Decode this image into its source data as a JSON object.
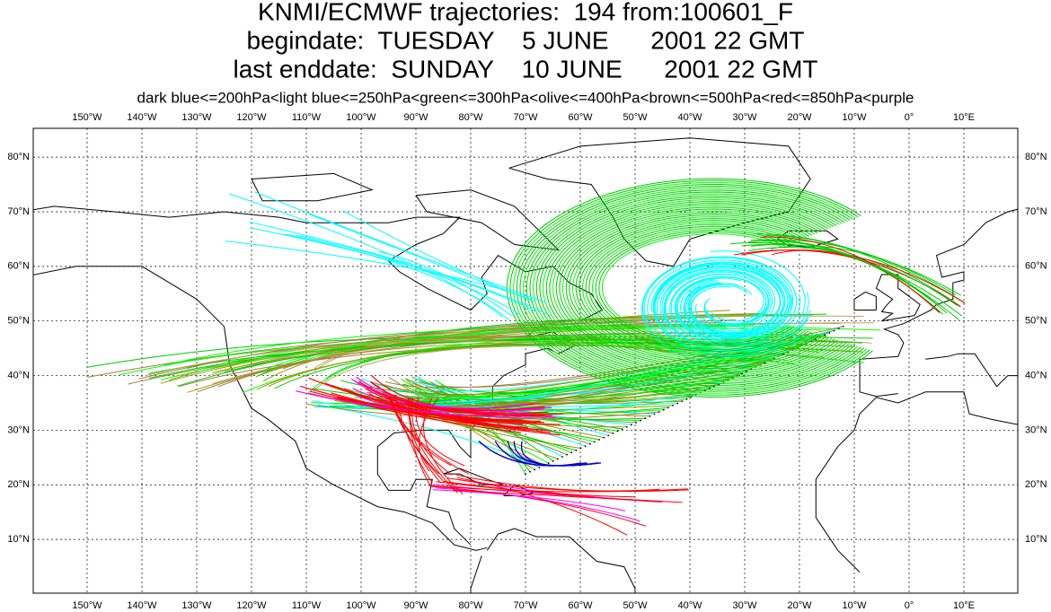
{
  "title": {
    "line1": "KNMI/ECMWF trajectories:  194 from:100601_F",
    "line2": "begindate:  TUESDAY    5 JUNE      2001 22 GMT",
    "line3": "last enddate:  SUNDAY    10 JUNE      2001 22 GMT"
  },
  "legend": "dark blue<=200hPa<light blue<=250hPa<green<=300hPa<olive<=400hPa<brown<=500hPa<red<=850hPa<purple",
  "map": {
    "lon_grid": [
      {
        "value": -150,
        "label": "150°W"
      },
      {
        "value": -140,
        "label": "140°W"
      },
      {
        "value": -130,
        "label": "130°W"
      },
      {
        "value": -120,
        "label": "120°W"
      },
      {
        "value": -110,
        "label": "110°W"
      },
      {
        "value": -100,
        "label": "100°W"
      },
      {
        "value": -90,
        "label": "90°W"
      },
      {
        "value": -80,
        "label": "80°W"
      },
      {
        "value": -70,
        "label": "70°W"
      },
      {
        "value": -60,
        "label": "60°W"
      },
      {
        "value": -50,
        "label": "50°W"
      },
      {
        "value": -40,
        "label": "40°W"
      },
      {
        "value": -30,
        "label": "30°W"
      },
      {
        "value": -20,
        "label": "20°W"
      },
      {
        "value": -10,
        "label": "10°W"
      },
      {
        "value": 0,
        "label": "0°"
      },
      {
        "value": 10,
        "label": "10°E"
      }
    ],
    "lat_grid": [
      {
        "value": 10,
        "label": "10°N"
      },
      {
        "value": 20,
        "label": "20°N"
      },
      {
        "value": 30,
        "label": "30°N"
      },
      {
        "value": 40,
        "label": "40°N"
      },
      {
        "value": 50,
        "label": "50°N"
      },
      {
        "value": 60,
        "label": "60°N"
      },
      {
        "value": 70,
        "label": "70°N"
      },
      {
        "value": 80,
        "label": "80°N"
      }
    ]
  }
}
